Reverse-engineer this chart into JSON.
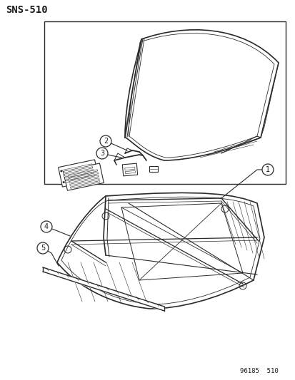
{
  "title": "SNS-510",
  "footer": "96185  510",
  "bg_color": "#ffffff",
  "line_color": "#2a2a2a",
  "text_color": "#1a1a1a",
  "fig_width": 4.14,
  "fig_height": 5.33,
  "dpi": 100
}
